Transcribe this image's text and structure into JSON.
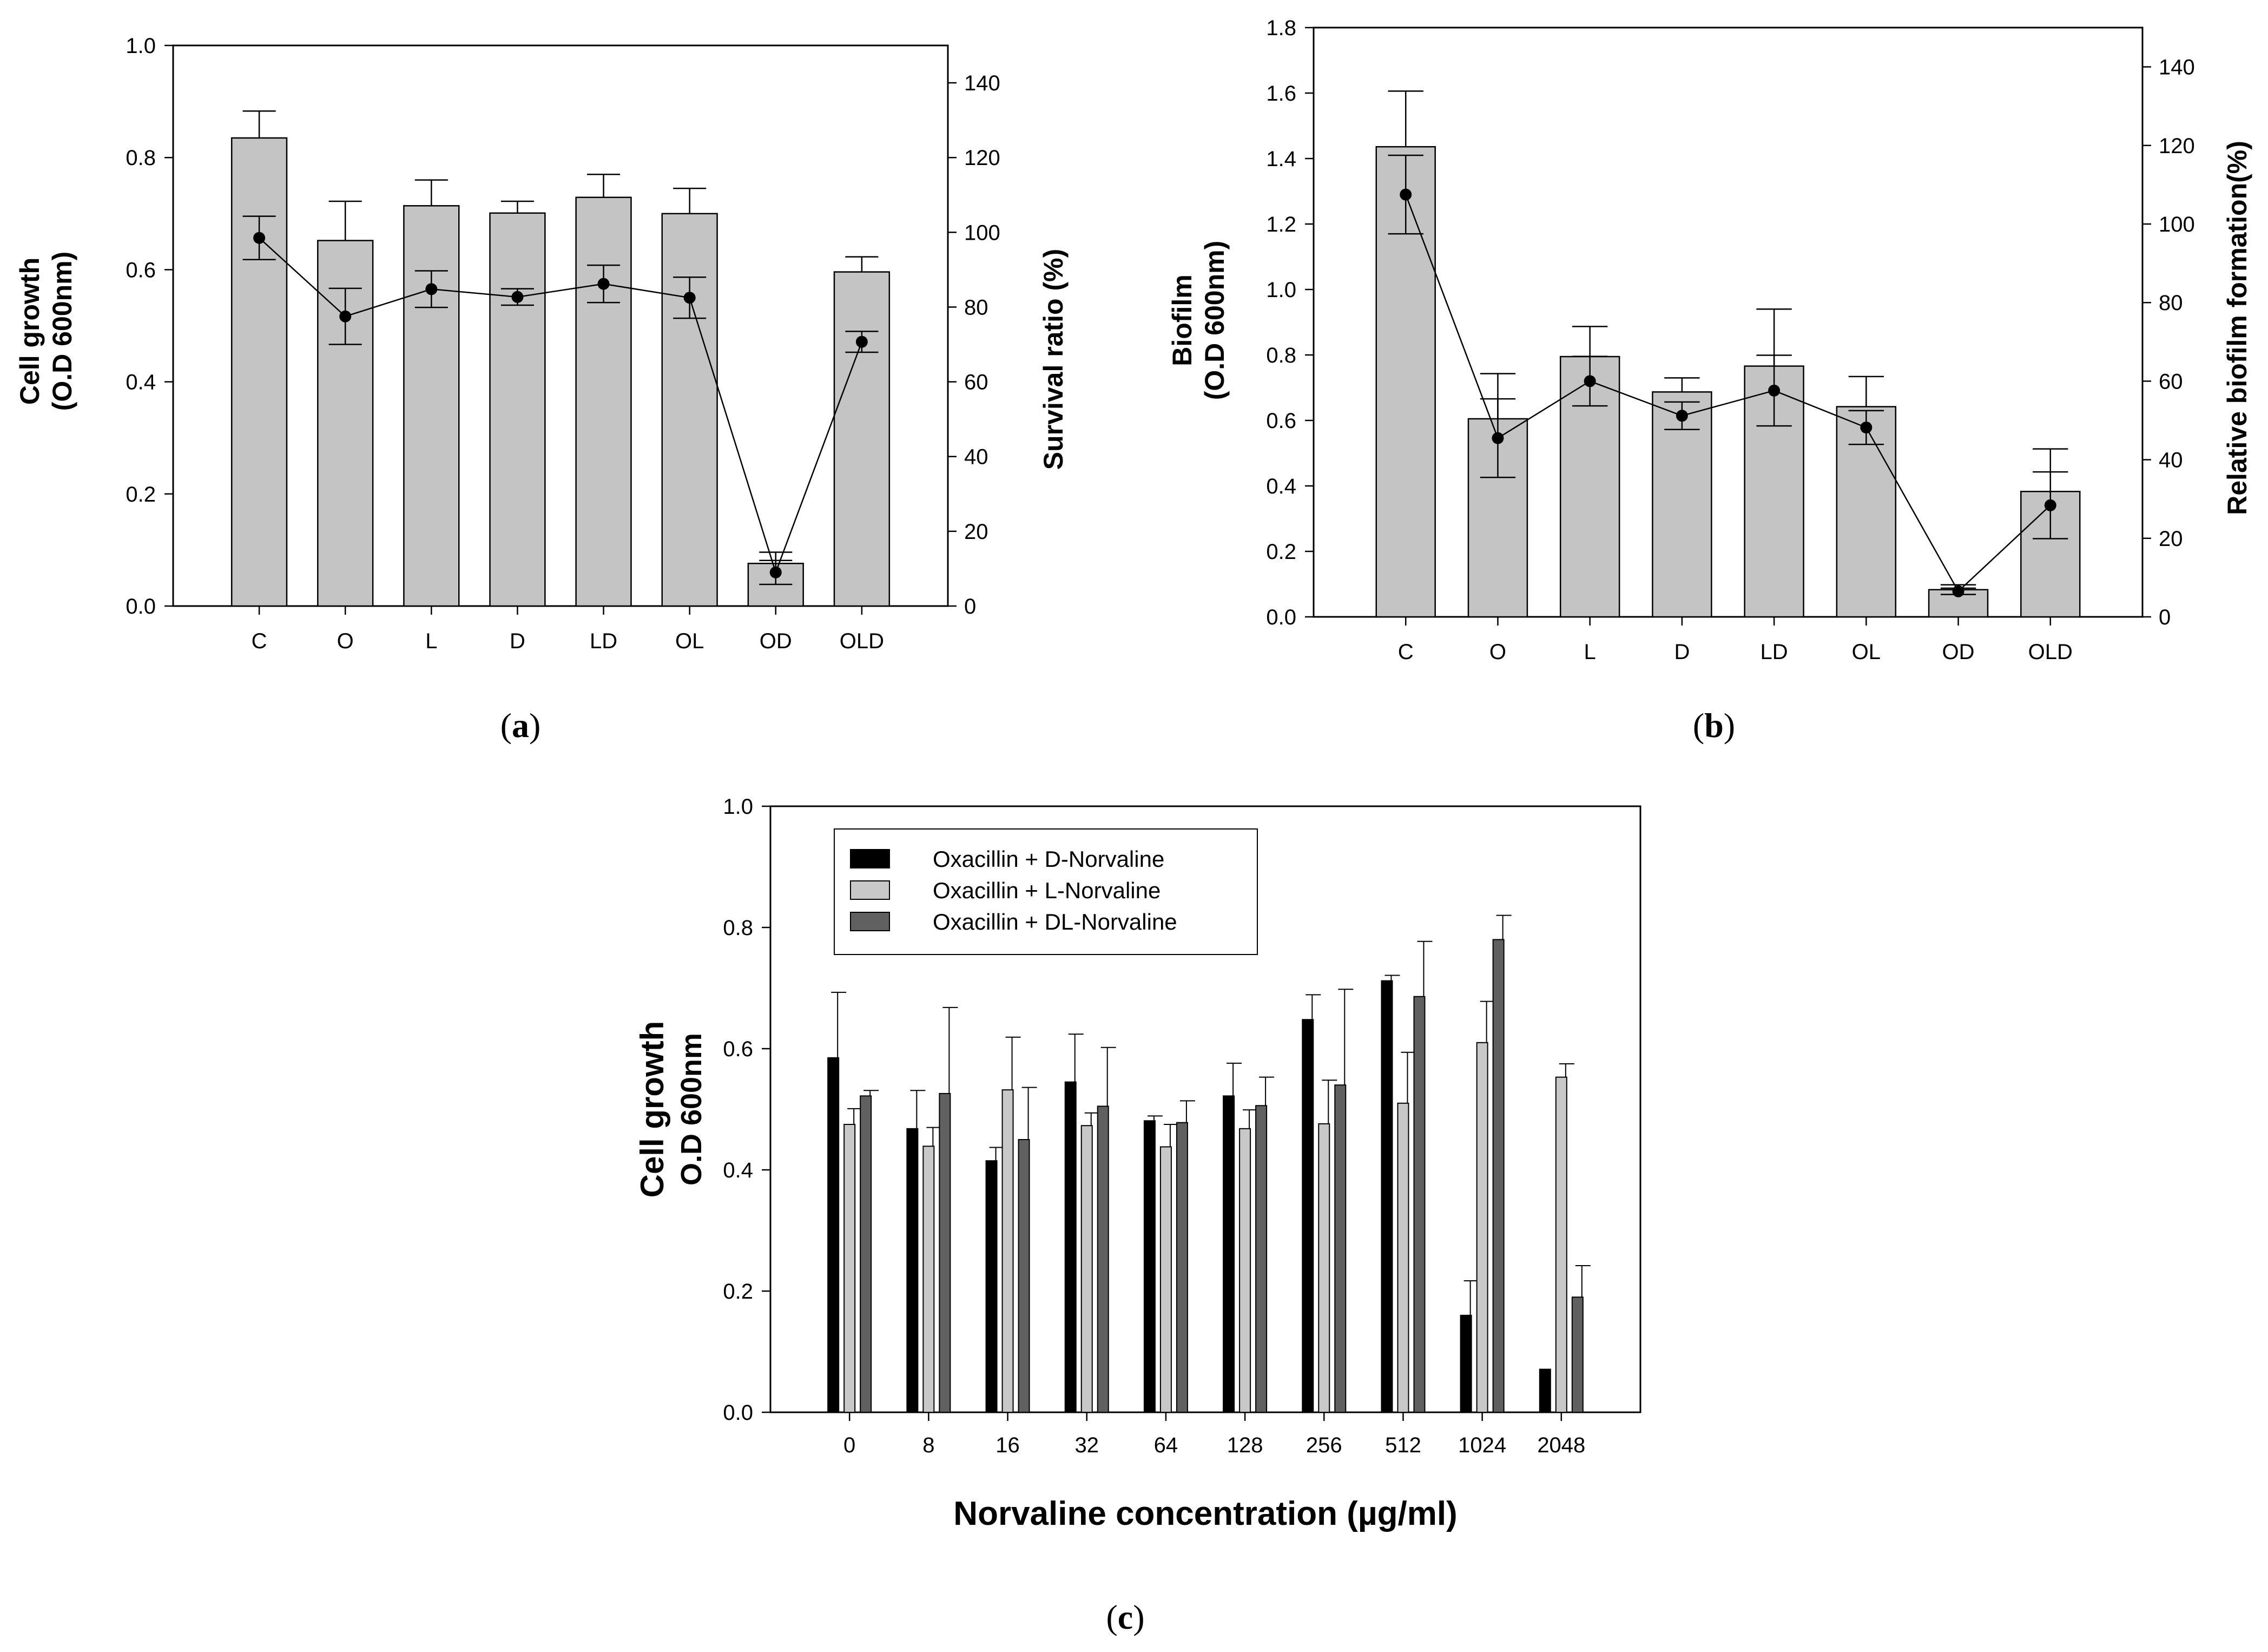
{
  "colors": {
    "bar_gray": "#c4c4c4",
    "d_norvaline": "#000000",
    "l_norvaline": "#c8c8c8",
    "dl_norvaline": "#606060",
    "line": "#000000"
  },
  "chart_data": [
    {
      "id": "a",
      "type": "bar",
      "caption": {
        "open": "(",
        "letter": "a",
        "close": ")"
      },
      "categories": [
        "C",
        "O",
        "L",
        "D",
        "LD",
        "OL",
        "OD",
        "OLD"
      ],
      "bars": {
        "name": "Cell growth",
        "values": [
          0.835,
          0.652,
          0.714,
          0.701,
          0.729,
          0.7,
          0.076,
          0.596
        ],
        "errors": [
          0.048,
          0.07,
          0.046,
          0.021,
          0.041,
          0.045,
          0.02,
          0.027
        ]
      },
      "line": {
        "name": "Survival ratio",
        "values": [
          98.5,
          77.5,
          84.8,
          82.7,
          86.2,
          82.5,
          9.0,
          70.7
        ],
        "errors": [
          5.8,
          7.5,
          4.9,
          2.2,
          5.0,
          5.5,
          3.2,
          2.8
        ]
      },
      "ylabel_line1": "Cell growth",
      "ylabel_line2": "(O.D 600nm)",
      "y2label": "Survival ratio (%)",
      "ylim": [
        0,
        1.0
      ],
      "yticks": [
        "0.0",
        "0.2",
        "0.4",
        "0.6",
        "0.8",
        "1.0"
      ],
      "y2lim": [
        0,
        150
      ],
      "y2ticks": [
        "0",
        "20",
        "40",
        "60",
        "80",
        "100",
        "120",
        "140"
      ]
    },
    {
      "id": "b",
      "type": "bar",
      "caption": {
        "open": "(",
        "letter": "b",
        "close": ")"
      },
      "categories": [
        "C",
        "O",
        "L",
        "D",
        "LD",
        "OL",
        "OD",
        "OLD"
      ],
      "bars": {
        "name": "Biofilm",
        "values": [
          1.436,
          0.605,
          0.795,
          0.687,
          0.766,
          0.642,
          0.083,
          0.383
        ],
        "errors": [
          0.17,
          0.138,
          0.092,
          0.043,
          0.174,
          0.092,
          0.015,
          0.13
        ]
      },
      "line": {
        "name": "Relative biofilm formation",
        "values": [
          107.5,
          45.5,
          60.0,
          51.2,
          57.6,
          48.2,
          6.5,
          28.4
        ],
        "errors": [
          10.0,
          10.0,
          6.3,
          3.5,
          9.0,
          4.3,
          0.8,
          8.5
        ]
      },
      "ylabel_line1": "Biofilm",
      "ylabel_line2": "(O.D 600nm)",
      "y2label": "Relative biofilm formation(%)",
      "ylim": [
        0,
        1.8
      ],
      "yticks": [
        "0.0",
        "0.2",
        "0.4",
        "0.6",
        "0.8",
        "1.0",
        "1.2",
        "1.4",
        "1.6",
        "1.8"
      ],
      "y2lim": [
        0,
        150
      ],
      "y2ticks": [
        "0",
        "20",
        "40",
        "60",
        "80",
        "100",
        "120",
        "140"
      ]
    },
    {
      "id": "c",
      "type": "bar",
      "caption": {
        "open": "(",
        "letter": "c",
        "close": ")"
      },
      "categories": [
        "0",
        "8",
        "16",
        "32",
        "64",
        "128",
        "256",
        "512",
        "1024",
        "2048"
      ],
      "series": [
        {
          "name": "Oxacillin + D-Norvaline",
          "values": [
            0.585,
            0.468,
            0.415,
            0.545,
            0.481,
            0.522,
            0.648,
            0.712,
            0.16,
            0.071
          ],
          "errors": [
            0.108,
            0.063,
            0.022,
            0.079,
            0.008,
            0.054,
            0.041,
            0.009,
            0.057,
            0.0
          ]
        },
        {
          "name": "Oxacillin + L-Norvaline",
          "values": [
            0.475,
            0.439,
            0.532,
            0.473,
            0.438,
            0.468,
            0.476,
            0.51,
            0.61,
            0.553
          ],
          "errors": [
            0.026,
            0.031,
            0.087,
            0.021,
            0.037,
            0.031,
            0.072,
            0.084,
            0.068,
            0.022
          ]
        },
        {
          "name": "Oxacillin + DL-Norvaline",
          "values": [
            0.522,
            0.526,
            0.45,
            0.505,
            0.478,
            0.506,
            0.54,
            0.686,
            0.78,
            0.19
          ],
          "errors": [
            0.009,
            0.142,
            0.086,
            0.097,
            0.036,
            0.047,
            0.158,
            0.091,
            0.04,
            0.052
          ]
        }
      ],
      "ylabel_line1": "Cell growth",
      "ylabel_line2": "O.D 600nm",
      "xlabel": "Norvaline concentration (µg/ml)",
      "ylim": [
        0,
        1.0
      ],
      "yticks": [
        "0.0",
        "0.2",
        "0.4",
        "0.6",
        "0.8",
        "1.0"
      ]
    }
  ]
}
